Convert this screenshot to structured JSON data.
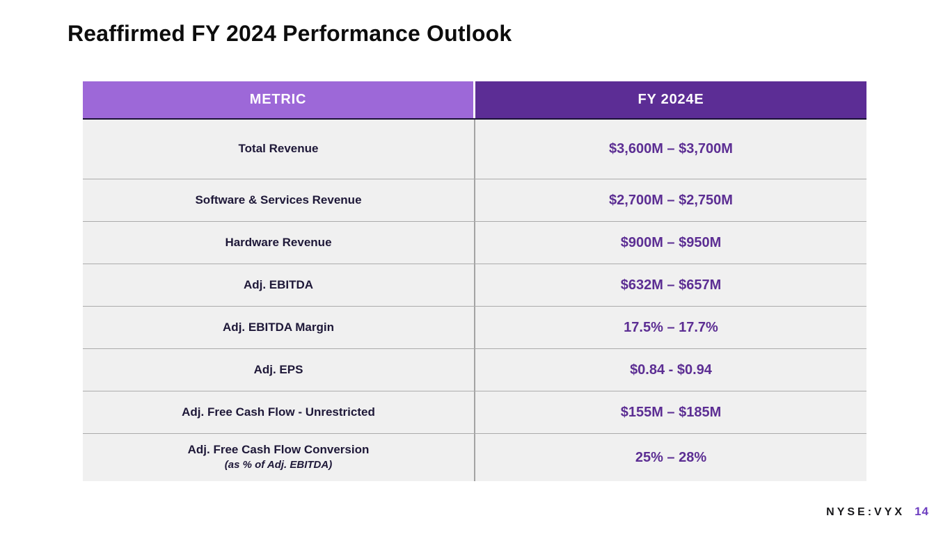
{
  "slide": {
    "title": "Reaffirmed FY 2024 Performance Outlook",
    "footer": {
      "ticker": "NYSE:VYX",
      "page_number": "14"
    }
  },
  "table": {
    "headers": {
      "metric": "METRIC",
      "value": "FY 2024E"
    },
    "rows": [
      {
        "metric": "Total Revenue",
        "value": "$3,600M – $3,700M"
      },
      {
        "metric": "Software & Services Revenue",
        "value": "$2,700M – $2,750M"
      },
      {
        "metric": "Hardware Revenue",
        "value": "$900M – $950M"
      },
      {
        "metric": "Adj. EBITDA",
        "value": "$632M – $657M"
      },
      {
        "metric": "Adj. EBITDA Margin",
        "value": "17.5% – 17.7%"
      },
      {
        "metric": "Adj. EPS",
        "value": "$0.84 - $0.94"
      },
      {
        "metric": "Adj. Free Cash Flow - Unrestricted",
        "value": "$155M – $185M"
      },
      {
        "metric": "Adj. Free Cash Flow Conversion",
        "metric_subtext": "(as % of Adj. EBITDA)",
        "value": "25% – 28%"
      }
    ]
  },
  "colors": {
    "header_metric_bg": "#9d68d8",
    "header_value_bg": "#5c2d95",
    "metric_text": "#1e1838",
    "value_text": "#5c2e93",
    "row_bg": "#f0f0f0",
    "divider": "#ababab",
    "header_border": "#1a1133",
    "page_number": "#6e3fc0"
  }
}
